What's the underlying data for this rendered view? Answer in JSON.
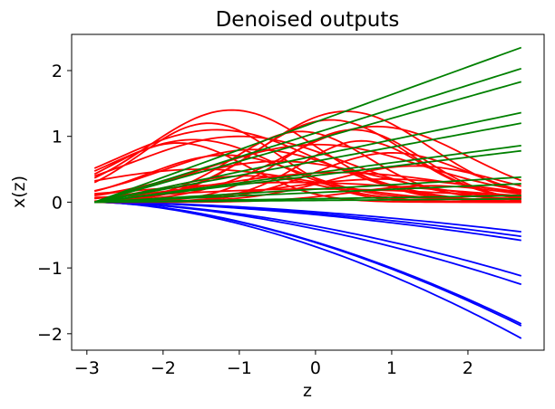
{
  "chart_data": {
    "type": "line",
    "title": "Denoised outputs",
    "xlabel": "z",
    "ylabel": "x(z)",
    "xlim": [
      -3.2,
      3.0
    ],
    "ylim": [
      -2.25,
      2.55
    ],
    "xticks": [
      -3,
      -2,
      -1,
      0,
      1,
      2
    ],
    "yticks": [
      -2,
      -1,
      0,
      1,
      2
    ],
    "x_start": -2.9,
    "x_end": 2.7,
    "grid": false,
    "colors": {
      "red": "#ff0000",
      "green": "#008000",
      "blue": "#0000ff"
    },
    "series": [
      {
        "group": "red",
        "kind": "bump",
        "params": [
          1.4,
          -1.1,
          1.1,
          0.0
        ]
      },
      {
        "group": "red",
        "kind": "bump",
        "params": [
          1.38,
          0.4,
          1.1,
          0.0
        ]
      },
      {
        "group": "red",
        "kind": "bump",
        "params": [
          1.2,
          -1.4,
          0.9,
          0.0
        ]
      },
      {
        "group": "red",
        "kind": "bump",
        "params": [
          1.25,
          0.2,
          1.0,
          0.0
        ]
      },
      {
        "group": "red",
        "kind": "bump",
        "params": [
          1.1,
          -1.3,
          1.3,
          0.0
        ]
      },
      {
        "group": "red",
        "kind": "bump",
        "params": [
          1.15,
          0.8,
          1.2,
          0.0
        ]
      },
      {
        "group": "red",
        "kind": "bump",
        "params": [
          1.0,
          -1.0,
          1.4,
          0.0
        ]
      },
      {
        "group": "red",
        "kind": "bump",
        "params": [
          1.05,
          -0.2,
          0.9,
          0.05
        ]
      },
      {
        "group": "red",
        "kind": "bump",
        "params": [
          0.95,
          -1.6,
          1.1,
          0.0
        ]
      },
      {
        "group": "red",
        "kind": "bump",
        "params": [
          0.9,
          0.6,
          0.8,
          0.05
        ]
      },
      {
        "group": "red",
        "kind": "bump",
        "params": [
          0.8,
          -0.8,
          1.2,
          0.0
        ]
      },
      {
        "group": "red",
        "kind": "bump",
        "params": [
          0.85,
          0.0,
          1.4,
          0.05
        ]
      },
      {
        "group": "red",
        "kind": "bump",
        "params": [
          0.7,
          -1.2,
          1.0,
          0.05
        ]
      },
      {
        "group": "red",
        "kind": "bump",
        "params": [
          0.75,
          1.0,
          1.0,
          0.0
        ]
      },
      {
        "group": "red",
        "kind": "bump",
        "params": [
          0.6,
          -0.5,
          1.3,
          0.05
        ]
      },
      {
        "group": "red",
        "kind": "bump",
        "params": [
          0.55,
          1.3,
          1.1,
          0.0
        ]
      },
      {
        "group": "red",
        "kind": "bump",
        "params": [
          0.5,
          -1.5,
          1.5,
          0.0
        ]
      },
      {
        "group": "red",
        "kind": "bump",
        "params": [
          0.45,
          0.3,
          1.6,
          0.0
        ]
      },
      {
        "group": "red",
        "kind": "bump",
        "params": [
          0.4,
          -0.9,
          1.0,
          0.0
        ]
      },
      {
        "group": "red",
        "kind": "bump",
        "params": [
          0.35,
          0.9,
          1.4,
          0.0
        ]
      },
      {
        "group": "red",
        "kind": "bump",
        "params": [
          0.3,
          -0.3,
          2.0,
          0.0
        ]
      },
      {
        "group": "red",
        "kind": "bump",
        "params": [
          0.25,
          1.5,
          1.0,
          0.0
        ]
      },
      {
        "group": "red",
        "kind": "bump",
        "params": [
          0.2,
          0.0,
          2.0,
          0.0
        ]
      },
      {
        "group": "red",
        "kind": "bump",
        "params": [
          0.9,
          -1.8,
          0.9,
          0.0
        ]
      },
      {
        "group": "red",
        "kind": "bump",
        "params": [
          1.1,
          0.5,
          0.9,
          0.0
        ]
      },
      {
        "group": "green",
        "kind": "line",
        "params": [
          2.35
        ]
      },
      {
        "group": "green",
        "kind": "line",
        "params": [
          2.03
        ]
      },
      {
        "group": "green",
        "kind": "line",
        "params": [
          1.83
        ]
      },
      {
        "group": "green",
        "kind": "line",
        "params": [
          1.36
        ]
      },
      {
        "group": "green",
        "kind": "line",
        "params": [
          1.2
        ]
      },
      {
        "group": "green",
        "kind": "line",
        "params": [
          0.86
        ]
      },
      {
        "group": "green",
        "kind": "line",
        "params": [
          0.78
        ]
      },
      {
        "group": "green",
        "kind": "line",
        "params": [
          0.38
        ]
      },
      {
        "group": "green",
        "kind": "line",
        "params": [
          0.28
        ]
      },
      {
        "group": "green",
        "kind": "line",
        "params": [
          0.1
        ]
      },
      {
        "group": "green",
        "kind": "line",
        "params": [
          0.05
        ]
      },
      {
        "group": "blue",
        "kind": "curve",
        "params": [
          -0.45
        ]
      },
      {
        "group": "blue",
        "kind": "curve",
        "params": [
          -0.52
        ]
      },
      {
        "group": "blue",
        "kind": "curve",
        "params": [
          -0.58
        ]
      },
      {
        "group": "blue",
        "kind": "curve",
        "params": [
          -1.12
        ]
      },
      {
        "group": "blue",
        "kind": "curve",
        "params": [
          -1.25
        ]
      },
      {
        "group": "blue",
        "kind": "curve",
        "params": [
          -1.85
        ]
      },
      {
        "group": "blue",
        "kind": "curve",
        "params": [
          -1.88
        ]
      },
      {
        "group": "blue",
        "kind": "curve",
        "params": [
          -2.07
        ]
      }
    ]
  }
}
